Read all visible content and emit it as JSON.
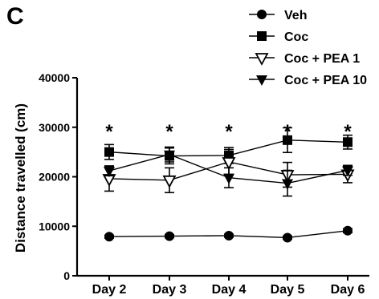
{
  "panel_label": "C",
  "chart_data": {
    "type": "line",
    "title": "",
    "xlabel": "",
    "ylabel": "Distance travelled (cm)",
    "categories": [
      "Day 2",
      "Day 3",
      "Day 4",
      "Day 5",
      "Day 6"
    ],
    "ylim": [
      0,
      40000
    ],
    "yticks": [
      0,
      10000,
      20000,
      30000,
      40000
    ],
    "grid": false,
    "legend_position": "top-right",
    "series": [
      {
        "name": "Veh",
        "marker": "circle",
        "values": [
          7900,
          8000,
          8100,
          7700,
          9100
        ],
        "errors": [
          300,
          300,
          300,
          300,
          400
        ]
      },
      {
        "name": "Coc",
        "marker": "square",
        "values": [
          25000,
          24200,
          24300,
          27400,
          27000
        ],
        "errors": [
          1500,
          1600,
          1600,
          2500,
          1400
        ]
      },
      {
        "name": "Coc + PEA 1",
        "marker": "triangle-down-open",
        "values": [
          19600,
          19300,
          23000,
          20400,
          20500
        ],
        "errors": [
          2500,
          2500,
          2500,
          2500,
          1700
        ]
      },
      {
        "name": "Coc + PEA 10",
        "marker": "triangle-down",
        "values": [
          21200,
          24500,
          19800,
          18700,
          21300
        ],
        "errors": [
          1000,
          1500,
          2000,
          2600,
          1000
        ]
      }
    ],
    "annotations": [
      {
        "category": "Day 2",
        "text": "*"
      },
      {
        "category": "Day 3",
        "text": "*"
      },
      {
        "category": "Day 4",
        "text": "*"
      },
      {
        "category": "Day 5",
        "text": "*"
      },
      {
        "category": "Day 6",
        "text": "*"
      }
    ]
  }
}
